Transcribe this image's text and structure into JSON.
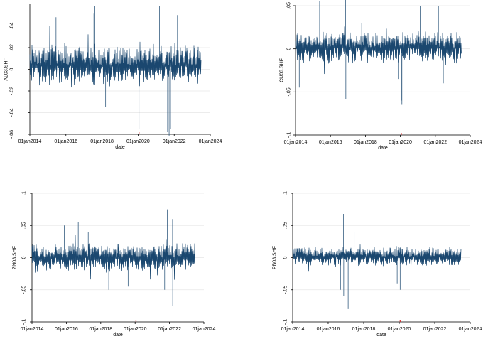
{
  "colors": {
    "series": "#1a476f",
    "grid": "#e6e6e6",
    "axis": "#000000",
    "marker": "#d62728",
    "background": "#ffffff"
  },
  "chart_data": [
    {
      "type": "line",
      "ylabel": "AL03.SHF",
      "xlabel": "date",
      "xlim": [
        "2014-01-01",
        "2024-01-01"
      ],
      "x_ticks": [
        "01jan2014",
        "01jan2016",
        "01jan2018",
        "01jan2020",
        "01jan2022",
        "01jan2024"
      ],
      "ylim": [
        -0.06,
        0.06
      ],
      "y_ticks": [
        -0.06,
        -0.04,
        -0.02,
        0,
        0.02,
        0.04
      ],
      "y_tick_labels": [
        "-.06",
        "-.04",
        "-.02",
        "0",
        ".02",
        ".04"
      ],
      "grid": true,
      "series": [
        {
          "x_range": [
            "2014-01-01",
            "2023-06-30"
          ],
          "typical_band": [
            -0.015,
            0.022
          ],
          "max": 0.058,
          "min": -0.062,
          "spikes": [
            {
              "date": "2015-06-15",
              "value": 0.048
            },
            {
              "date": "2017-07-20",
              "value": 0.052
            },
            {
              "date": "2017-08-10",
              "value": 0.058
            },
            {
              "date": "2018-03-15",
              "value": -0.035
            },
            {
              "date": "2019-11-20",
              "value": -0.034
            },
            {
              "date": "2020-01-20",
              "value": -0.055
            },
            {
              "date": "2021-03-10",
              "value": 0.058
            },
            {
              "date": "2021-07-15",
              "value": -0.03
            },
            {
              "date": "2021-08-20",
              "value": -0.058
            },
            {
              "date": "2021-09-20",
              "value": -0.062
            },
            {
              "date": "2021-10-18",
              "value": -0.055
            },
            {
              "date": "2022-03-08",
              "value": 0.05
            }
          ]
        }
      ],
      "markers": [
        {
          "date": "2020-01-20",
          "value": -0.06
        }
      ]
    },
    {
      "type": "line",
      "ylabel": "CU03.SHF",
      "xlabel": "date",
      "xlim": [
        "2014-01-01",
        "2024-01-01"
      ],
      "x_ticks": [
        "01jan2014",
        "01jan2016",
        "01jan2018",
        "01jan2020",
        "01jan2022",
        "01jan2024"
      ],
      "ylim": [
        -0.1,
        0.05
      ],
      "y_ticks": [
        -0.1,
        -0.05,
        0,
        0.05
      ],
      "y_tick_labels": [
        "-.1",
        "-.05",
        "0",
        ".05"
      ],
      "grid": true,
      "series": [
        {
          "x_range": [
            "2014-01-01",
            "2023-06-30"
          ],
          "typical_band": [
            -0.015,
            0.018
          ],
          "max": 0.063,
          "min": -0.065,
          "spikes": [
            {
              "date": "2014-03-20",
              "value": -0.045
            },
            {
              "date": "2015-05-20",
              "value": 0.055
            },
            {
              "date": "2016-11-11",
              "value": 0.063
            },
            {
              "date": "2016-11-18",
              "value": -0.058
            },
            {
              "date": "2017-10-15",
              "value": 0.03
            },
            {
              "date": "2019-11-20",
              "value": -0.035
            },
            {
              "date": "2020-01-20",
              "value": -0.06
            },
            {
              "date": "2020-02-03",
              "value": -0.065
            },
            {
              "date": "2021-02-20",
              "value": 0.05
            },
            {
              "date": "2022-03-07",
              "value": 0.05
            },
            {
              "date": "2022-06-17",
              "value": -0.04
            }
          ]
        }
      ],
      "markers": [
        {
          "date": "2020-01-20",
          "value": -0.1
        }
      ]
    },
    {
      "type": "line",
      "ylabel": "ZN03.SHF",
      "xlabel": "date",
      "xlim": [
        "2014-01-01",
        "2024-01-01"
      ],
      "x_ticks": [
        "01jan2014",
        "01jan2016",
        "01jan2018",
        "01jan2020",
        "01jan2022",
        "01jan2024"
      ],
      "ylim": [
        -0.1,
        0.1
      ],
      "y_ticks": [
        -0.1,
        -0.05,
        0,
        0.05,
        0.1
      ],
      "y_tick_labels": [
        "-.1",
        "-.05",
        "0",
        ".05",
        ".1"
      ],
      "grid": true,
      "series": [
        {
          "x_range": [
            "2014-01-01",
            "2023-06-30"
          ],
          "typical_band": [
            -0.02,
            0.02
          ],
          "max": 0.075,
          "min": -0.075,
          "spikes": [
            {
              "date": "2015-11-20",
              "value": 0.05
            },
            {
              "date": "2016-09-10",
              "value": 0.055
            },
            {
              "date": "2016-10-15",
              "value": -0.07
            },
            {
              "date": "2017-04-10",
              "value": 0.04
            },
            {
              "date": "2018-06-20",
              "value": -0.05
            },
            {
              "date": "2019-08-05",
              "value": -0.045
            },
            {
              "date": "2020-01-20",
              "value": -0.04
            },
            {
              "date": "2021-09-20",
              "value": -0.05
            },
            {
              "date": "2021-11-15",
              "value": 0.075
            },
            {
              "date": "2022-03-07",
              "value": 0.06
            },
            {
              "date": "2022-03-10",
              "value": -0.075
            }
          ]
        }
      ],
      "markers": [
        {
          "date": "2020-01-20",
          "value": -0.1
        }
      ]
    },
    {
      "type": "line",
      "ylabel": "PB03.SHF",
      "xlabel": "date",
      "xlim": [
        "2014-01-01",
        "2024-01-01"
      ],
      "x_ticks": [
        "01jan2014",
        "01jan2016",
        "01jan2018",
        "01jan2020",
        "01jan2022",
        "01jan2024"
      ],
      "ylim": [
        -0.1,
        0.1
      ],
      "y_ticks": [
        -0.1,
        -0.05,
        0,
        0.05,
        0.1
      ],
      "y_tick_labels": [
        "-.1",
        "-.05",
        "0",
        ".05",
        ".1"
      ],
      "grid": true,
      "series": [
        {
          "x_range": [
            "2014-01-01",
            "2023-06-30"
          ],
          "typical_band": [
            -0.012,
            0.015
          ],
          "max": 0.07,
          "min": -0.08,
          "spikes": [
            {
              "date": "2016-05-20",
              "value": 0.035
            },
            {
              "date": "2016-09-10",
              "value": -0.05
            },
            {
              "date": "2016-11-10",
              "value": 0.068
            },
            {
              "date": "2016-11-16",
              "value": -0.06
            },
            {
              "date": "2017-02-15",
              "value": -0.08
            },
            {
              "date": "2017-06-20",
              "value": 0.04
            },
            {
              "date": "2019-11-20",
              "value": -0.04
            },
            {
              "date": "2020-01-20",
              "value": -0.05
            },
            {
              "date": "2022-03-07",
              "value": 0.035
            }
          ]
        }
      ],
      "markers": [
        {
          "date": "2020-01-20",
          "value": -0.1
        }
      ]
    }
  ]
}
